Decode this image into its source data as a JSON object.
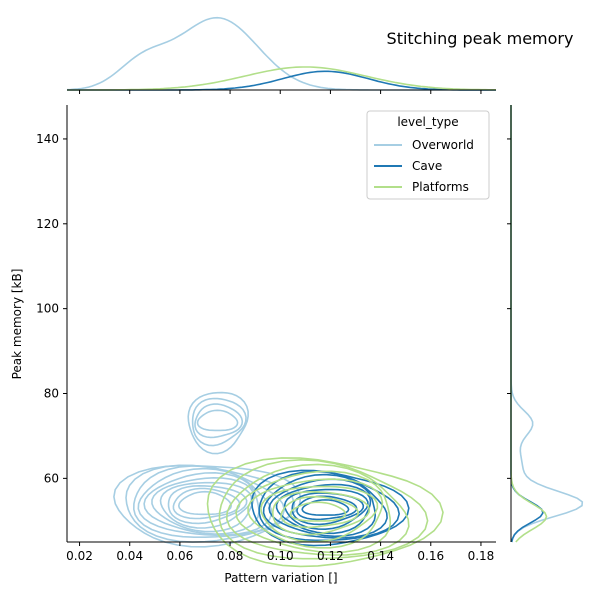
{
  "chart_data": {
    "type": "kde-joint",
    "title": "Stitching peak memory",
    "xlabel": "Pattern variation []",
    "ylabel": "Peak memory [kB]",
    "xlim": [
      0.015,
      0.186
    ],
    "ylim": [
      45,
      148
    ],
    "xticks": [
      "0.02",
      "0.04",
      "0.06",
      "0.08",
      "0.10",
      "0.12",
      "0.14",
      "0.16",
      "0.18"
    ],
    "xtick_values": [
      0.02,
      0.04,
      0.06,
      0.08,
      0.1,
      0.12,
      0.14,
      0.16,
      0.18
    ],
    "yticks": [
      "60",
      "80",
      "100",
      "120",
      "140"
    ],
    "ytick_values": [
      60,
      80,
      100,
      120,
      140
    ],
    "grid": false,
    "legend": {
      "title": "level_type",
      "placement": "top-right",
      "entries": [
        "Overworld",
        "Cave",
        "Platforms"
      ]
    },
    "series": [
      {
        "name": "Overworld",
        "color": "#a6cee3",
        "modes": [
          {
            "x": 0.075,
            "y": 73.5,
            "sx": 0.006,
            "sy": 1.0,
            "levels": 4,
            "spread": 0.012,
            "spread_y": 7
          },
          {
            "x": 0.07,
            "y": 54,
            "sx": 0.007,
            "sy": 2.0,
            "levels": 10,
            "spread": 0.035,
            "spread_y": 10
          }
        ],
        "x_marginal_peak": 0.075,
        "y_marginal_peak": 54
      },
      {
        "name": "Cave",
        "color": "#1f78b4",
        "modes": [
          {
            "x": 0.118,
            "y": 53,
            "sx": 0.006,
            "sy": 1.0,
            "levels": 9,
            "spread": 0.03,
            "spread_y": 9
          }
        ],
        "x_marginal_peak": 0.117,
        "y_marginal_peak": 52
      },
      {
        "name": "Platforms",
        "color": "#b2df8a",
        "modes": [
          {
            "x": 0.115,
            "y": 52,
            "sx": 0.006,
            "sy": 1.0,
            "levels": 9,
            "spread": 0.045,
            "spread_y": 13
          }
        ],
        "x_marginal_peak": 0.11,
        "y_marginal_peak": 51
      }
    ]
  }
}
